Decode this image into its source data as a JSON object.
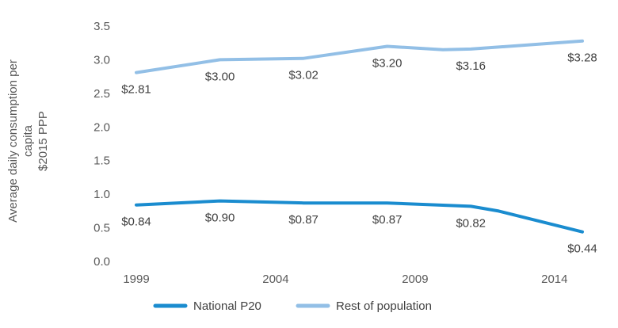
{
  "chart_data": {
    "type": "line",
    "title": "",
    "ylabel_lines": [
      "Average daily consumption per",
      "capita",
      "$2015 PPP"
    ],
    "ylim": [
      0,
      3.5
    ],
    "y_ticks": [
      "0.0",
      "0.5",
      "1.0",
      "1.5",
      "2.0",
      "2.5",
      "3.0",
      "3.5"
    ],
    "x_range": [
      1999,
      2015
    ],
    "x_ticks": [
      "1999",
      "2004",
      "2009",
      "2014"
    ],
    "grid": false,
    "legend_position": "bottom",
    "series": [
      {
        "name": "National P20",
        "color": "#1a8ccf",
        "points": [
          {
            "x": 1999,
            "y": 0.84,
            "label": "$0.84"
          },
          {
            "x": 2002,
            "y": 0.9,
            "label": "$0.90"
          },
          {
            "x": 2005,
            "y": 0.87,
            "label": "$0.87"
          },
          {
            "x": 2008,
            "y": 0.87,
            "label": "$0.87"
          },
          {
            "x": 2011,
            "y": 0.82,
            "label": "$0.82"
          },
          {
            "x": 2012,
            "y": 0.75
          },
          {
            "x": 2015,
            "y": 0.44,
            "label": "$0.44"
          }
        ]
      },
      {
        "name": "Rest of population",
        "color": "#92bfe6",
        "points": [
          {
            "x": 1999,
            "y": 2.81,
            "label": "$2.81"
          },
          {
            "x": 2002,
            "y": 3.0,
            "label": "$3.00"
          },
          {
            "x": 2005,
            "y": 3.02,
            "label": "$3.02"
          },
          {
            "x": 2008,
            "y": 3.2,
            "label": "$3.20"
          },
          {
            "x": 2010,
            "y": 3.15
          },
          {
            "x": 2011,
            "y": 3.16,
            "label": "$3.16"
          },
          {
            "x": 2015,
            "y": 3.28,
            "label": "$3.28"
          }
        ]
      }
    ]
  }
}
